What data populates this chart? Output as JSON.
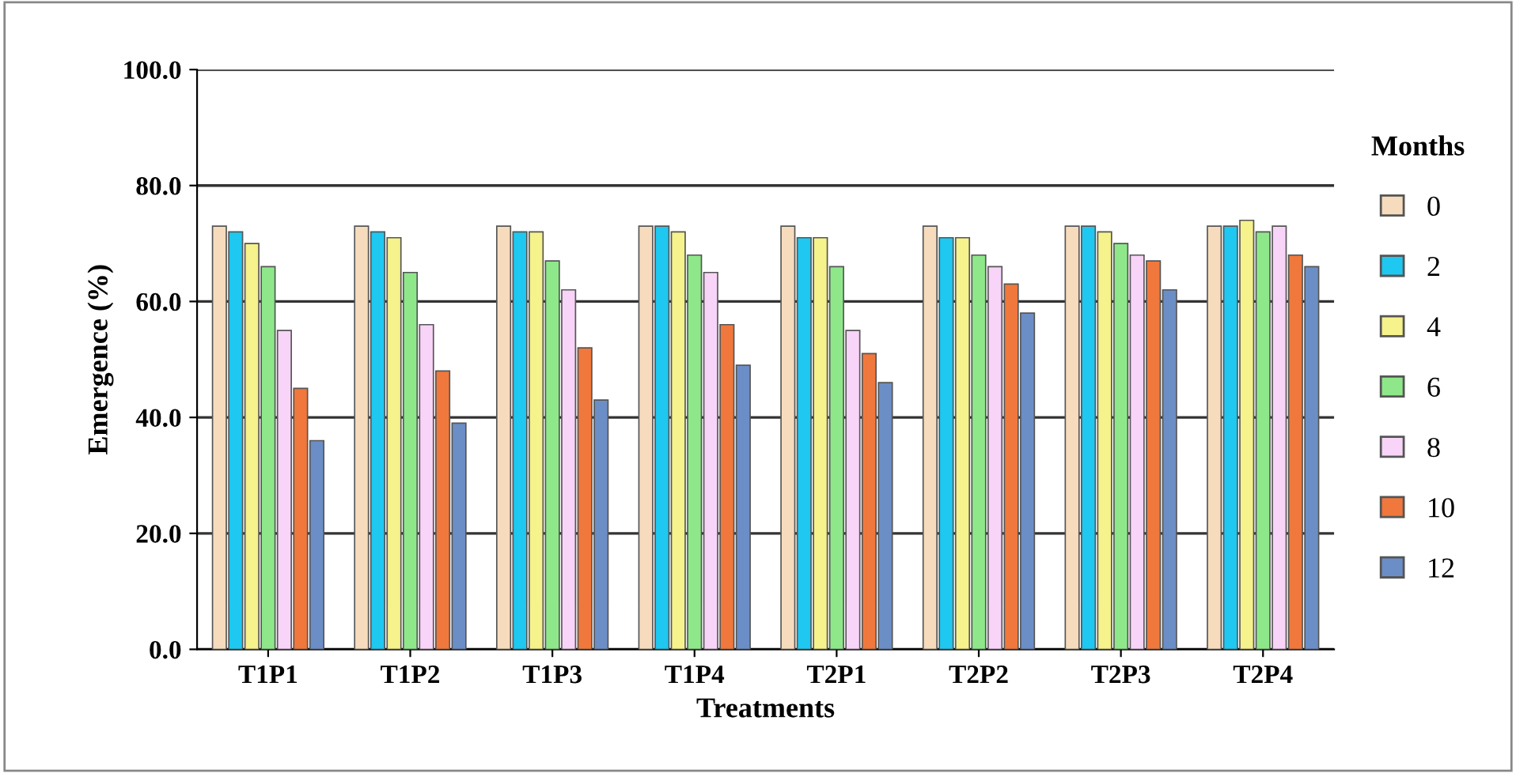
{
  "chart_data": {
    "type": "bar",
    "xlabel": "Treatments",
    "ylabel": "Emergence (%)",
    "legend_title": "Months",
    "legend": "right",
    "categories": [
      "T1P1",
      "T1P2",
      "T1P3",
      "T1P4",
      "T2P1",
      "T2P2",
      "T2P3",
      "T2P4"
    ],
    "series": [
      {
        "name": "0",
        "color": "#f6dcbc",
        "values": [
          73,
          73,
          73,
          73,
          73,
          73,
          73,
          73
        ]
      },
      {
        "name": "2",
        "color": "#1ec8f0",
        "values": [
          72,
          72,
          72,
          73,
          71,
          71,
          73,
          73
        ]
      },
      {
        "name": "4",
        "color": "#f6f28c",
        "values": [
          70,
          71,
          72,
          72,
          71,
          71,
          72,
          74
        ]
      },
      {
        "name": "6",
        "color": "#8ee88a",
        "values": [
          66,
          65,
          67,
          68,
          66,
          68,
          70,
          72
        ]
      },
      {
        "name": "8",
        "color": "#f8d4f8",
        "values": [
          55,
          56,
          62,
          65,
          55,
          66,
          68,
          73
        ]
      },
      {
        "name": "10",
        "color": "#f0783c",
        "values": [
          45,
          48,
          52,
          56,
          51,
          63,
          67,
          68
        ]
      },
      {
        "name": "12",
        "color": "#6c8ec6",
        "values": [
          36,
          39,
          43,
          49,
          46,
          58,
          62,
          66
        ]
      }
    ],
    "ylim": [
      0,
      100
    ],
    "yticks": [
      {
        "value": 0,
        "label": "0.0"
      },
      {
        "value": 20,
        "label": "20.0"
      },
      {
        "value": 40,
        "label": "40.0"
      },
      {
        "value": 60,
        "label": "60.0"
      },
      {
        "value": 80,
        "label": "80.0"
      },
      {
        "value": 100,
        "label": "100.0"
      }
    ],
    "grid": "y"
  }
}
